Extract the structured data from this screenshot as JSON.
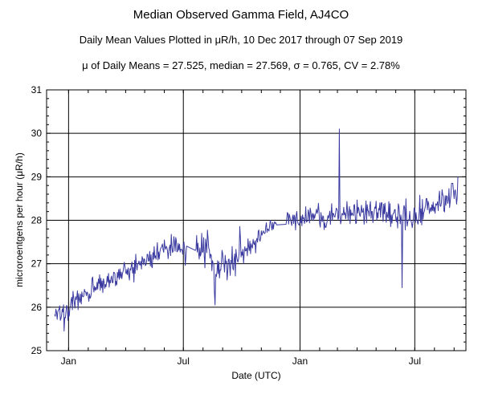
{
  "chart_data": {
    "type": "line",
    "title": "Median Observed Gamma Field, AJ4CO",
    "subtitle": "Daily Mean Values Plotted in μR/h, 10 Dec 2017 through 07 Sep 2019",
    "stats_line": "μ of Daily Means = 27.525,   median = 27.569,   σ = 0.765,   CV = 2.78%",
    "xlabel": "Date (UTC)",
    "ylabel": "microroentgens per hour (μR/h)",
    "ylim": [
      25,
      31
    ],
    "yticks": [
      25,
      26,
      27,
      28,
      29,
      30,
      31
    ],
    "xlim": [
      "2017-12-10",
      "2019-09-07"
    ],
    "xticks": [
      {
        "date": "2018-01-01",
        "label": "Jan"
      },
      {
        "date": "2018-07-01",
        "label": "Jul"
      },
      {
        "date": "2019-01-01",
        "label": "Jan"
      },
      {
        "date": "2019-07-01",
        "label": "Jul"
      }
    ],
    "grid": true,
    "line_color": "#3a3aa0",
    "key_points": [
      {
        "date": "2017-12-10",
        "value": 26.0
      },
      {
        "date": "2017-12-20",
        "value": 25.8
      },
      {
        "date": "2018-01-15",
        "value": 26.2
      },
      {
        "date": "2018-02-15",
        "value": 26.5
      },
      {
        "date": "2018-03-15",
        "value": 26.7
      },
      {
        "date": "2018-04-15",
        "value": 26.9
      },
      {
        "date": "2018-05-15",
        "value": 27.2
      },
      {
        "date": "2018-06-15",
        "value": 27.4
      },
      {
        "date": "2018-07-15",
        "value": 27.3
      },
      {
        "date": "2018-08-01",
        "value": 27.5
      },
      {
        "date": "2018-08-20",
        "value": 26.9
      },
      {
        "date": "2018-09-15",
        "value": 27.1
      },
      {
        "date": "2018-10-15",
        "value": 27.4
      },
      {
        "date": "2018-11-15",
        "value": 27.9
      },
      {
        "date": "2018-12-15",
        "value": 28.0
      },
      {
        "date": "2019-01-15",
        "value": 28.1
      },
      {
        "date": "2019-02-15",
        "value": 28.1
      },
      {
        "date": "2019-03-15",
        "value": 28.2
      },
      {
        "date": "2019-04-15",
        "value": 28.2
      },
      {
        "date": "2019-05-15",
        "value": 28.3
      },
      {
        "date": "2019-06-15",
        "value": 28.0
      },
      {
        "date": "2019-07-15",
        "value": 28.2
      },
      {
        "date": "2019-08-15",
        "value": 28.4
      },
      {
        "date": "2019-09-07",
        "value": 28.7
      }
    ],
    "extremes": [
      {
        "date": "2017-12-25",
        "value": 25.45
      },
      {
        "date": "2018-08-20",
        "value": 26.05
      },
      {
        "date": "2019-03-04",
        "value": 30.1
      },
      {
        "date": "2019-06-11",
        "value": 26.45
      },
      {
        "date": "2019-09-07",
        "value": 29.0
      }
    ],
    "noise_sd": [
      {
        "date": "2017-12-10",
        "sd": 0.22
      },
      {
        "date": "2018-02-01",
        "sd": 0.2
      },
      {
        "date": "2018-06-01",
        "sd": 0.2
      },
      {
        "date": "2018-08-01",
        "sd": 0.42
      },
      {
        "date": "2018-10-01",
        "sd": 0.3
      },
      {
        "date": "2018-11-15",
        "sd": 0.12
      },
      {
        "date": "2019-01-01",
        "sd": 0.2
      },
      {
        "date": "2019-04-01",
        "sd": 0.27
      },
      {
        "date": "2019-06-01",
        "sd": 0.32
      },
      {
        "date": "2019-09-07",
        "sd": 0.28
      }
    ],
    "gaps": [
      {
        "start": "2018-07-06",
        "end": "2018-07-20"
      },
      {
        "start": "2018-11-25",
        "end": "2018-12-10"
      }
    ]
  }
}
